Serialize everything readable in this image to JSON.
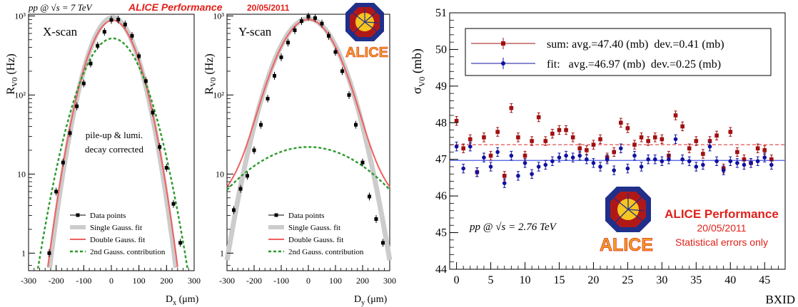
{
  "header": {
    "energy_left": "pp @ √s = 7 TeV",
    "perf_label": "ALICE Performance",
    "perf_date": "20/05/2011"
  },
  "colors": {
    "data": "#000000",
    "single_gauss": "#cccccc",
    "double_gauss": "#f06060",
    "second_gauss": "#2a9a2a",
    "sum": "#a01010",
    "fit": "#1010a0",
    "alice_red": "#e0201a"
  },
  "chart_data": [
    {
      "id": "xscan",
      "type": "scatter",
      "scan_label": "X-scan",
      "annotation": [
        "pile-up & lumi.",
        "decay corrected"
      ],
      "xlabel": "D_x (μm)",
      "ylabel": "R_V0 (Hz)",
      "xlim": [
        -300,
        300
      ],
      "ylim": [
        0.6,
        1050
      ],
      "yscale": "log",
      "x_ticks": [
        -300,
        -200,
        -100,
        0,
        100,
        200,
        300
      ],
      "y_ticks": [
        {
          "v": 1,
          "label": "1"
        },
        {
          "v": 10,
          "label": "10"
        },
        {
          "v": 100,
          "label": "10²"
        },
        {
          "v": 1000,
          "label": "10³"
        }
      ],
      "x": [
        -225,
        -200,
        -175,
        -150,
        -125,
        -100,
        -75,
        -50,
        -25,
        0,
        25,
        50,
        75,
        100,
        125,
        150,
        175,
        200,
        225,
        250
      ],
      "y": [
        1.0,
        6.0,
        14,
        33,
        72,
        140,
        250,
        420,
        630,
        890,
        900,
        780,
        560,
        310,
        150,
        60,
        22,
        12,
        4.2,
        1.35
      ],
      "model": {
        "double_a1": 880,
        "double_s1": 62,
        "double_a2": 520,
        "double_s2": 74,
        "double_mu": 5,
        "single_a": 950,
        "single_s": 60,
        "single_mu": 5
      },
      "legend": [
        "Data points",
        "Single Gauss. fit",
        "Double Gauss. fit",
        "2nd Gauss. contribution"
      ]
    },
    {
      "id": "yscan",
      "type": "scatter",
      "scan_label": "Y-scan",
      "xlabel": "D_y (μm)",
      "ylabel": "R_V0 (Hz)",
      "xlim": [
        -300,
        300
      ],
      "ylim": [
        0.6,
        1050
      ],
      "yscale": "log",
      "x_ticks": [
        -300,
        -200,
        -100,
        0,
        100,
        200,
        300
      ],
      "y_ticks": [
        {
          "v": 1,
          "label": "1"
        },
        {
          "v": 10,
          "label": "10"
        },
        {
          "v": 100,
          "label": "10²"
        },
        {
          "v": 1000,
          "label": "10³"
        }
      ],
      "x": [
        -275,
        -250,
        -225,
        -200,
        -175,
        -150,
        -125,
        -100,
        -75,
        -50,
        -25,
        0,
        25,
        50,
        75,
        100,
        125,
        150,
        175,
        200,
        225,
        250,
        275
      ],
      "y": [
        3.5,
        6.5,
        9.5,
        20,
        42,
        90,
        175,
        300,
        460,
        660,
        860,
        980,
        940,
        800,
        560,
        350,
        200,
        100,
        42,
        14,
        5.2,
        2.7,
        1.35
      ],
      "model": {
        "double_a1": 880,
        "double_s1": 78,
        "double_a2": 22,
        "double_s2": 190,
        "double_mu": 0,
        "single_a": 920,
        "single_s": 80,
        "single_mu": 0
      },
      "legend": [
        "Data points",
        "Single Gauss. fit",
        "Double Gauss. fit",
        "2nd Gauss. contribution"
      ]
    },
    {
      "id": "sigma",
      "type": "scatter",
      "xlabel": "BXID",
      "ylabel": "σ_V0 (mb)",
      "xlim": [
        -1,
        48
      ],
      "ylim": [
        44,
        51
      ],
      "x_ticks": [
        0,
        5,
        10,
        15,
        20,
        25,
        30,
        35,
        40,
        45
      ],
      "y_ticks": [
        44,
        45,
        46,
        47,
        48,
        49,
        50,
        51
      ],
      "series": [
        {
          "name": "sum",
          "legend": "sum: avg.=47.40 (mb)  dev.=0.41 (mb)",
          "avg": 47.4,
          "y": [
            48.05,
            47.3,
            47.55,
            46.65,
            47.6,
            47.1,
            47.75,
            46.55,
            48.4,
            47.6,
            47.1,
            47.5,
            48.15,
            47.5,
            47.7,
            47.8,
            47.8,
            47.6,
            47.3,
            47.25,
            47.4,
            47.55,
            47.05,
            47.2,
            48.0,
            47.85,
            47.4,
            47.6,
            47.5,
            47.6,
            47.55,
            47.1,
            48.2,
            47.9,
            47.3,
            47.5,
            47.15,
            47.5,
            47.65,
            46.75,
            47.75,
            47.2,
            47.0,
            46.9,
            47.3,
            47.25,
            47.0
          ],
          "err": 0.12
        },
        {
          "name": "fit",
          "legend": "fit:   avg.=46.97 (mb)  dev.=0.25 (mb)",
          "avg": 46.97,
          "y": [
            47.35,
            46.75,
            47.35,
            46.65,
            47.05,
            46.8,
            47.2,
            46.35,
            47.1,
            46.55,
            46.9,
            46.6,
            46.8,
            46.85,
            46.95,
            47.05,
            47.1,
            47.05,
            47.1,
            47.0,
            46.9,
            46.8,
            47.0,
            46.7,
            47.3,
            46.75,
            47.1,
            46.8,
            47.0,
            47.0,
            46.95,
            47.0,
            47.55,
            47.0,
            46.95,
            46.8,
            46.85,
            47.35,
            46.95,
            46.7,
            46.95,
            46.9,
            46.85,
            46.9,
            46.95,
            47.05,
            46.85
          ],
          "err": 0.12
        }
      ],
      "annotation": "pp @ √s = 2.76 TeV",
      "logo_text": "ALICE",
      "perf_label": "ALICE Performance",
      "perf_date": "20/05/2011",
      "perf_note": "Statistical errors only"
    }
  ]
}
